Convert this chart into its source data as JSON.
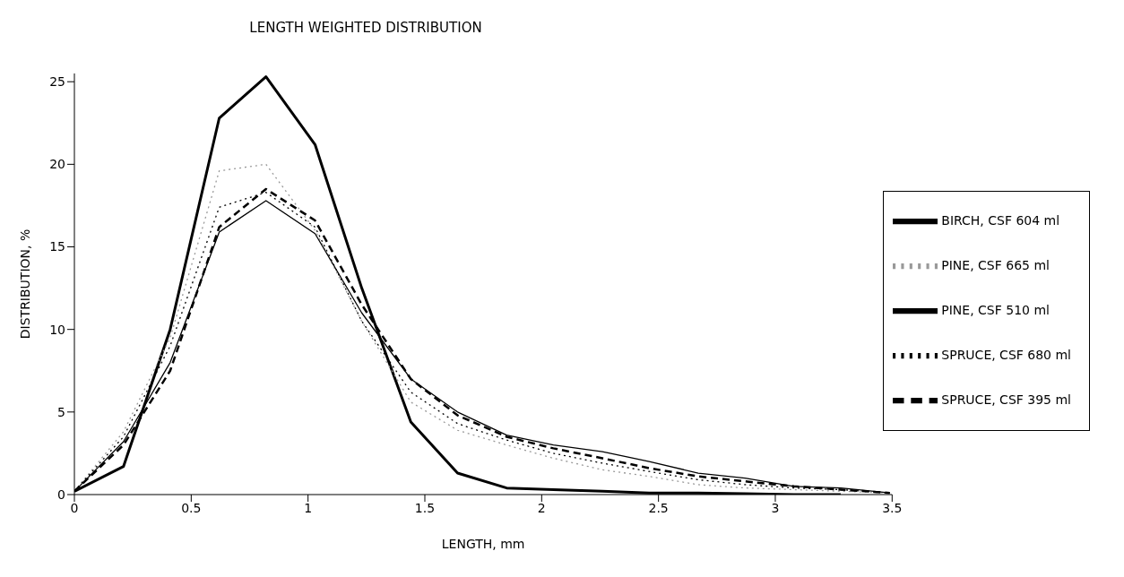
{
  "chart_data": {
    "type": "line",
    "title": "LENGTH WEIGHTED DISTRIBUTION",
    "xlabel": "LENGTH, mm",
    "ylabel": "DISTRIBUTION, %",
    "x": [
      0,
      0.21,
      0.41,
      0.62,
      0.82,
      1.03,
      1.23,
      1.44,
      1.64,
      1.85,
      2.05,
      2.26,
      2.46,
      2.67,
      2.87,
      3.08,
      3.28,
      3.49
    ],
    "series": [
      {
        "name": "BIRCH, CSF 604 ml",
        "color": "#000000",
        "line_style": "solid",
        "values": [
          0.2,
          1.7,
          10,
          22.8,
          25.3,
          21.2,
          12.5,
          4.4,
          1.3,
          0.4,
          0.3,
          0.2,
          0.1,
          0.1,
          0.05,
          0,
          0,
          null
        ]
      },
      {
        "name": "PINE, CSF 665 ml",
        "color": "#999999",
        "line_style": "dotted",
        "values": [
          0.2,
          3.8,
          9.5,
          19.6,
          20,
          16,
          10.5,
          5.6,
          3.9,
          3,
          2.2,
          1.5,
          1.1,
          0.6,
          0.4,
          0.3,
          0.2,
          0.1
        ]
      },
      {
        "name": "PINE, CSF 510 ml",
        "color": "#000000",
        "line_style": "solid",
        "values": [
          0.2,
          3.2,
          8,
          15.9,
          17.8,
          15.8,
          11,
          7,
          5,
          3.6,
          3,
          2.6,
          2,
          1.3,
          1,
          0.5,
          0.4,
          0.1
        ]
      },
      {
        "name": "SPRUCE, CSF 680 ml",
        "color": "#000000",
        "line_style": "dotted",
        "values": [
          0.2,
          3.5,
          9,
          17.4,
          18.3,
          16.2,
          10.5,
          6.2,
          4.3,
          3.3,
          2.5,
          1.9,
          1.4,
          0.9,
          0.6,
          0.4,
          0.3,
          0.1
        ]
      },
      {
        "name": "SPRUCE, CSF 395 ml",
        "color": "#000000",
        "line_style": "dashed",
        "values": [
          0.2,
          3,
          7.5,
          16.2,
          18.5,
          16.6,
          11.5,
          7,
          4.8,
          3.5,
          2.8,
          2.2,
          1.6,
          1.1,
          0.8,
          0.5,
          0.3,
          0.1
        ]
      }
    ],
    "xlim": [
      0,
      3.5
    ],
    "xticks": [
      0,
      0.5,
      1,
      1.5,
      2,
      2.5,
      3,
      3.5
    ],
    "ylim": [
      0,
      25.5
    ],
    "yticks": [
      0,
      5,
      10,
      15,
      20,
      25
    ],
    "grid": false,
    "legend": "right",
    "marker": "none"
  }
}
